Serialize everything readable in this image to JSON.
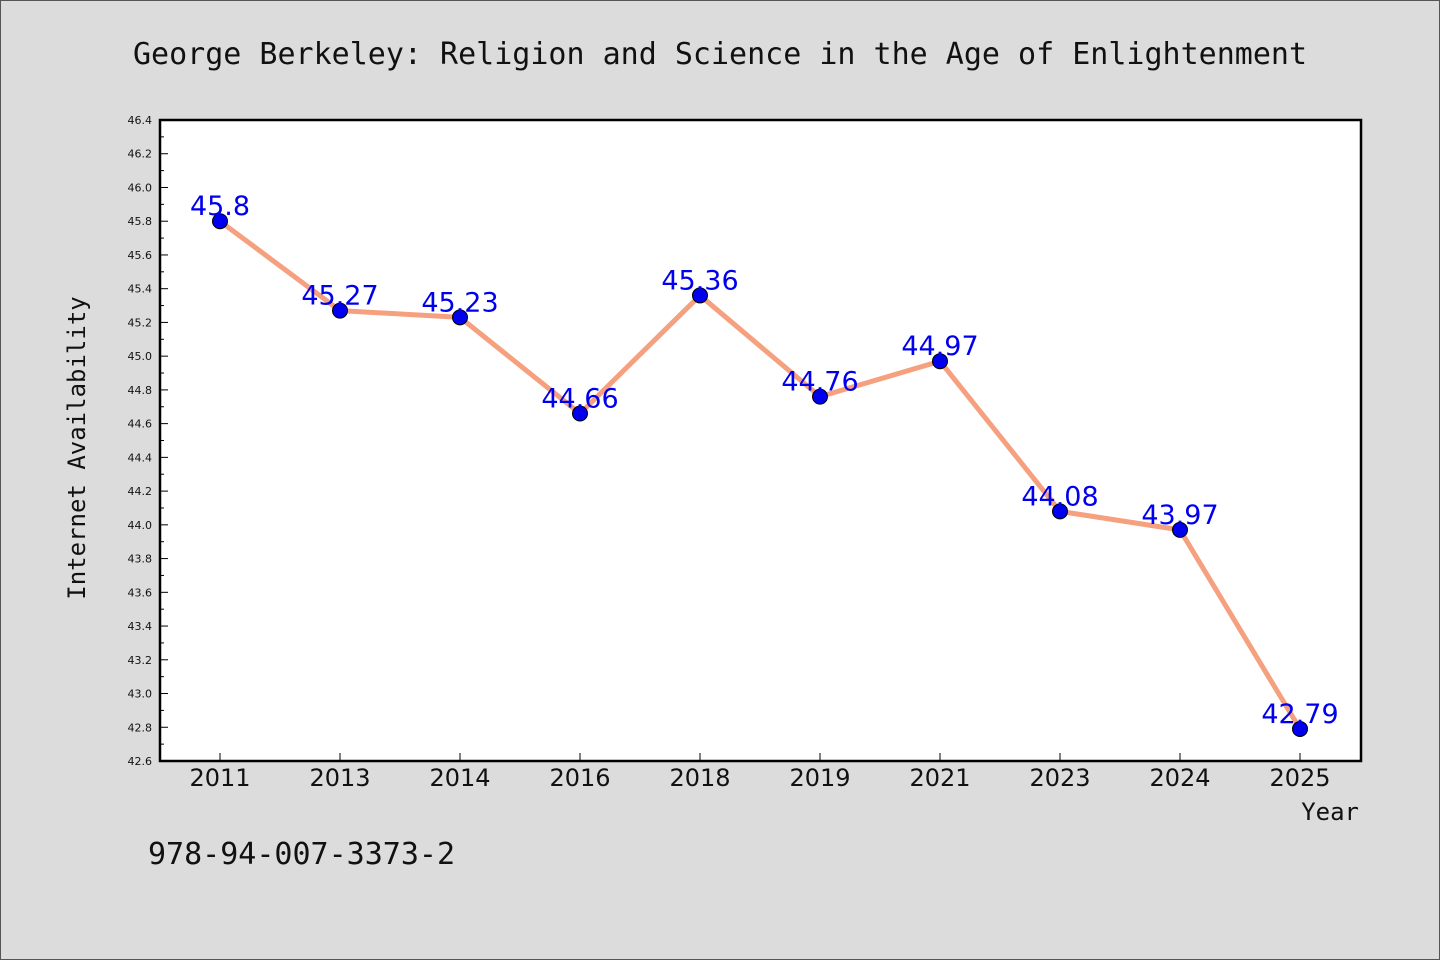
{
  "chart_data": {
    "type": "line",
    "title": "George Berkeley: Religion and Science in the Age of Enlightenment",
    "xlabel": "Year",
    "ylabel": "Internet Availability",
    "categories": [
      "2011",
      "2013",
      "2014",
      "2016",
      "2018",
      "2019",
      "2021",
      "2023",
      "2024",
      "2025"
    ],
    "series": [
      {
        "values": [
          45.8,
          45.27,
          45.23,
          44.66,
          45.36,
          44.76,
          44.97,
          44.08,
          43.97,
          42.79
        ],
        "labels": [
          "45.8",
          "45.27",
          "45.23",
          "44.66",
          "45.36",
          "44.76",
          "44.97",
          "44.08",
          "43.97",
          "42.79"
        ]
      }
    ],
    "ylim": [
      42.6,
      46.4
    ],
    "yticks": [
      42.6,
      42.8,
      43.0,
      43.2,
      43.4,
      43.6,
      43.8,
      44.0,
      44.2,
      44.4,
      44.6,
      44.8,
      45.0,
      45.2,
      45.4,
      45.6,
      45.8,
      46.0,
      46.2,
      46.4
    ],
    "ytick_labels": [
      "42.6",
      "42.8",
      "43.0",
      "43.2",
      "43.4",
      "43.6",
      "43.8",
      "44.0",
      "44.2",
      "44.4",
      "44.6",
      "44.8",
      "45.0",
      "45.2",
      "45.4",
      "45.6",
      "45.8",
      "46.0",
      "46.2",
      "46.4"
    ],
    "grid": false,
    "legend": "none",
    "colors": {
      "line": "#f5a07e",
      "marker": "#0000ee",
      "data_label": "#0000ee",
      "background": "#dcdcdc",
      "plot_background": "#ffffff"
    }
  },
  "footer": {
    "isbn": "978-94-007-3373-2"
  }
}
